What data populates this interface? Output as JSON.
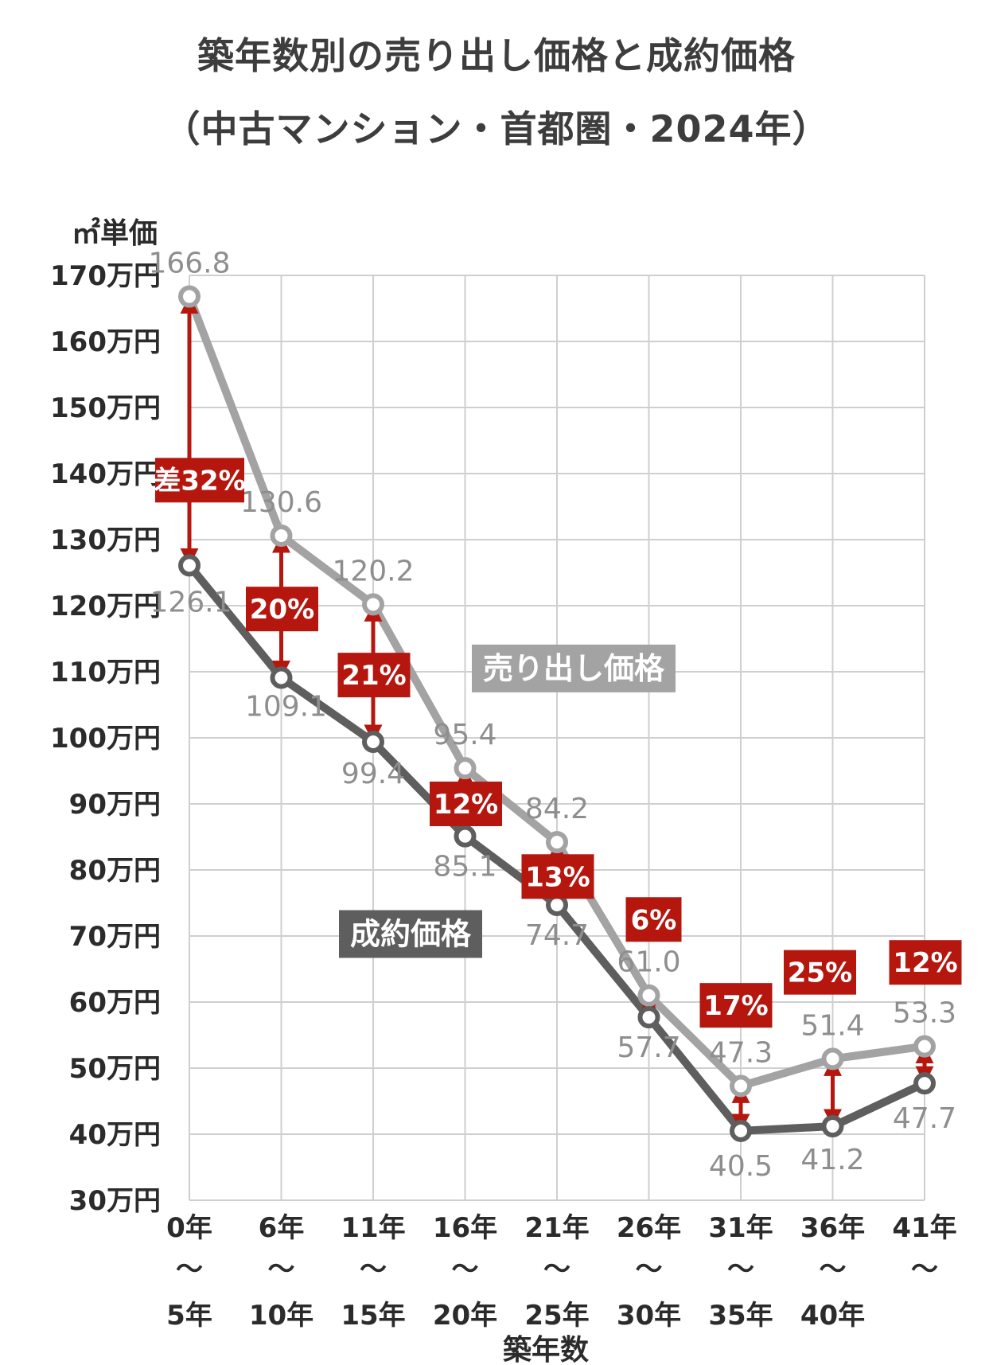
{
  "title": "築年数別の売り出し価格と成約価格",
  "subtitle": "（中古マンション・首都圏・2024年）",
  "chart_data": {
    "type": "line",
    "title": "築年数別の売り出し価格と成約価格",
    "subtitle": "（中古マンション・首都圏・2024年）",
    "ylabel": "㎡単価",
    "xlabel": "築年数",
    "ylim": [
      30,
      170
    ],
    "grid": true,
    "y_ticks": [
      "30万円",
      "40万円",
      "50万円",
      "60万円",
      "70万円",
      "80万円",
      "90万円",
      "100万円",
      "110万円",
      "120万円",
      "130万円",
      "140万円",
      "150万円",
      "160万円",
      "170万円"
    ],
    "categories": [
      {
        "top": "0年",
        "mid": "〜",
        "bottom": "5年"
      },
      {
        "top": "6年",
        "mid": "〜",
        "bottom": "10年"
      },
      {
        "top": "11年",
        "mid": "〜",
        "bottom": "15年"
      },
      {
        "top": "16年",
        "mid": "〜",
        "bottom": "20年"
      },
      {
        "top": "21年",
        "mid": "〜",
        "bottom": "25年"
      },
      {
        "top": "26年",
        "mid": "〜",
        "bottom": "30年"
      },
      {
        "top": "31年",
        "mid": "〜",
        "bottom": "35年"
      },
      {
        "top": "36年",
        "mid": "〜",
        "bottom": "40年"
      },
      {
        "top": "41年",
        "mid": "〜",
        "bottom": ""
      }
    ],
    "series": [
      {
        "name": "売り出し価格",
        "color": "#a3a3a3",
        "values": [
          166.8,
          130.6,
          120.2,
          95.4,
          84.2,
          61.0,
          47.3,
          51.4,
          53.3
        ],
        "labels": [
          "166.8",
          "130.6",
          "120.2",
          "95.4",
          "84.2",
          "61.0",
          "47.3",
          "51.4",
          "53.3"
        ]
      },
      {
        "name": "成約価格",
        "color": "#5e5e5e",
        "values": [
          126.1,
          109.1,
          99.4,
          85.1,
          74.7,
          57.7,
          40.5,
          41.2,
          47.7
        ],
        "labels": [
          "126.1",
          "109.1",
          "99.4",
          "85.1",
          "74.7",
          "57.7",
          "40.5",
          "41.2",
          "47.7"
        ]
      }
    ],
    "gap_labels": [
      "差32%",
      "20%",
      "21%",
      "12%",
      "13%",
      "6%",
      "17%",
      "25%",
      "12%"
    ],
    "gap_color": "#b5170f"
  }
}
